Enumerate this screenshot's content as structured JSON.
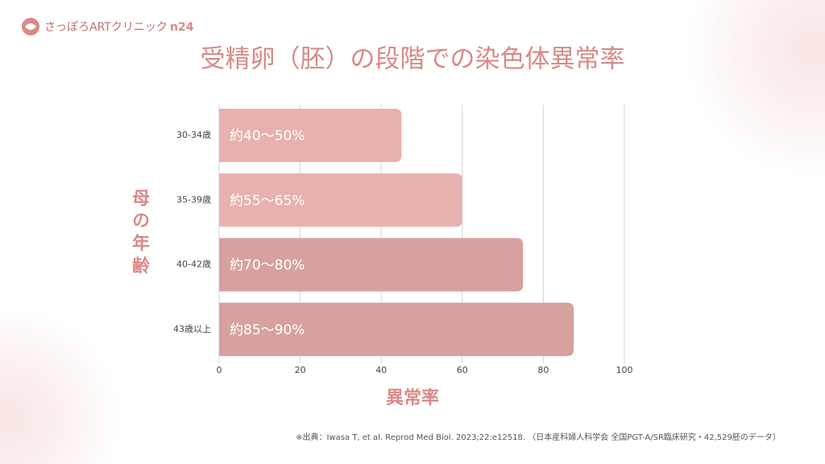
{
  "logo": {
    "name": "さっぽろARTクリニック",
    "suffix": "n24"
  },
  "chart_data": {
    "type": "hbar",
    "title": "受精卵（胚）の段階での染色体異常率",
    "y_label": "母の年齢",
    "x_label": "異常率",
    "source": "※出典：Iwasa T, et al. Reprod Med Biol. 2023;22:e12518. （日本産科婦人科学会 全国PGT-A/SR臨床研究・42,529胚のデータ）",
    "categories": [
      "30-34歳",
      "35-39歳",
      "40-42歳",
      "43歳以上"
    ],
    "values": [
      45,
      60,
      75,
      87.5
    ],
    "value_labels": [
      "約40～50%",
      "約55～65%",
      "約70～80%",
      "約85～90%"
    ],
    "colors": [
      "#e8b1ae",
      "#e8b1ae",
      "#d6a19e",
      "#d6a19e"
    ],
    "xlim": [
      0,
      100
    ],
    "xticks": [
      0,
      20,
      40,
      60,
      80,
      100
    ],
    "grid": true
  }
}
